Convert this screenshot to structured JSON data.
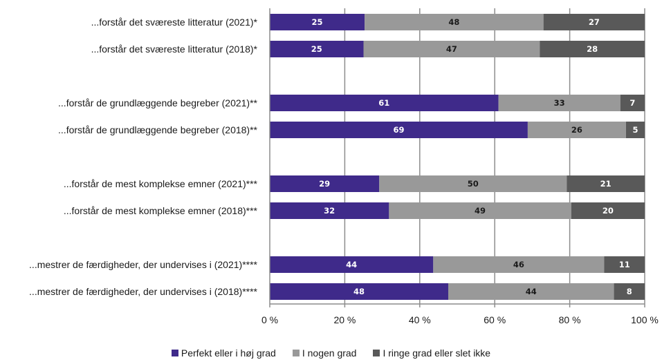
{
  "chart_data": {
    "type": "bar",
    "orientation": "horizontal",
    "stacked": true,
    "categories": [
      "...forstår det sværeste litteratur (2021)*",
      "...forstår det sværeste litteratur (2018)*",
      "...forstår de grundlæggende begreber (2021)**",
      "...forstår de grundlæggende begreber (2018)**",
      "...forstår de mest komplekse emner (2021)***",
      "...forstår de mest komplekse emner (2018)***",
      "...mestrer de færdigheder, der undervises i (2021)****",
      "...mestrer de færdigheder, der undervises i (2018)****"
    ],
    "groups": [
      [
        0,
        1
      ],
      [
        2,
        3
      ],
      [
        4,
        5
      ],
      [
        6,
        7
      ]
    ],
    "series": [
      {
        "name": "Perfekt eller i høj grad",
        "color": "#3f2a8a",
        "label_color": "#ffffff",
        "values": [
          25,
          25,
          61,
          69,
          29,
          32,
          44,
          48
        ],
        "plotted": [
          25.3,
          25.0,
          61.0,
          68.8,
          29.2,
          31.8,
          43.6,
          47.6
        ]
      },
      {
        "name": "I nogen grad",
        "color": "#999999",
        "label_color": "#1a1a1a",
        "values": [
          48,
          47,
          33,
          26,
          50,
          49,
          46,
          44
        ],
        "plotted": [
          47.7,
          47.0,
          32.5,
          26.2,
          50.0,
          48.6,
          45.6,
          44.2
        ]
      },
      {
        "name": "I ringe grad eller slet ikke",
        "color": "#595959",
        "label_color": "#ffffff",
        "values": [
          27,
          28,
          7,
          5,
          21,
          20,
          11,
          8
        ],
        "plotted": [
          27.0,
          28.0,
          6.5,
          5.0,
          20.8,
          19.6,
          10.8,
          8.2
        ]
      }
    ],
    "x_ticks": [
      "0 %",
      "20 %",
      "40 %",
      "60 %",
      "80 %",
      "100 %"
    ],
    "xlim": [
      0,
      100
    ],
    "grid": true,
    "legend_position": "bottom"
  }
}
